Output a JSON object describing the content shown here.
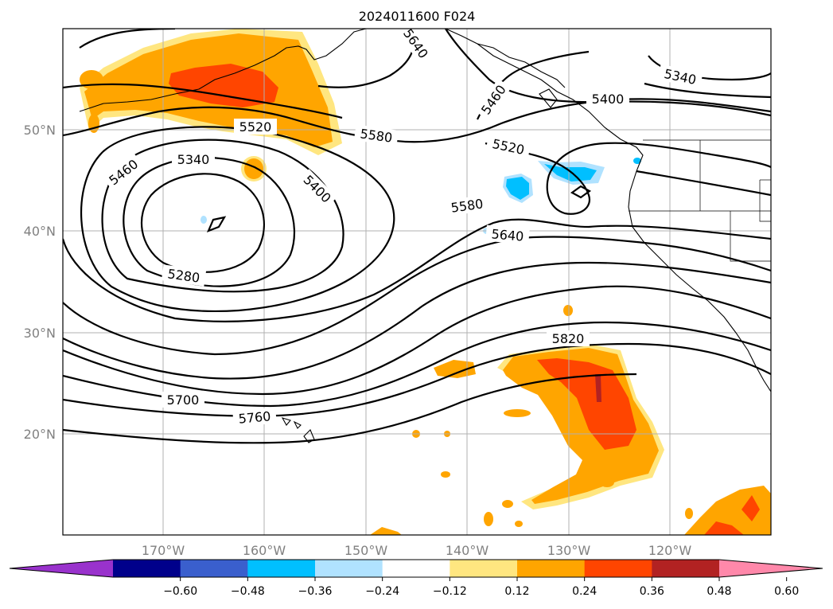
{
  "title": "2024011600 F024",
  "lon_labels": [
    "170°W",
    "160°W",
    "150°W",
    "140°W",
    "130°W",
    "120°W"
  ],
  "lat_labels": [
    "50°N",
    "40°N",
    "30°N",
    "20°N"
  ],
  "contour_labels": [
    "5640",
    "5340",
    "5460",
    "5400",
    "5520",
    "5580",
    "5520",
    "5460",
    "5340",
    "5400",
    "5580",
    "5640",
    "5280",
    "5820",
    "5700",
    "5760"
  ],
  "colorbar": {
    "ticks": [
      "−0.60",
      "−0.48",
      "−0.36",
      "−0.24",
      "−0.12",
      "0.12",
      "0.24",
      "0.36",
      "0.48",
      "0.60"
    ],
    "colors": [
      "#9932cc",
      "#00008b",
      "#3a5fcd",
      "#00bfff",
      "#b0e2ff",
      "#ffffff",
      "#ffe680",
      "#ffa500",
      "#ff4500",
      "#b22222",
      "#ff88aa"
    ]
  }
}
